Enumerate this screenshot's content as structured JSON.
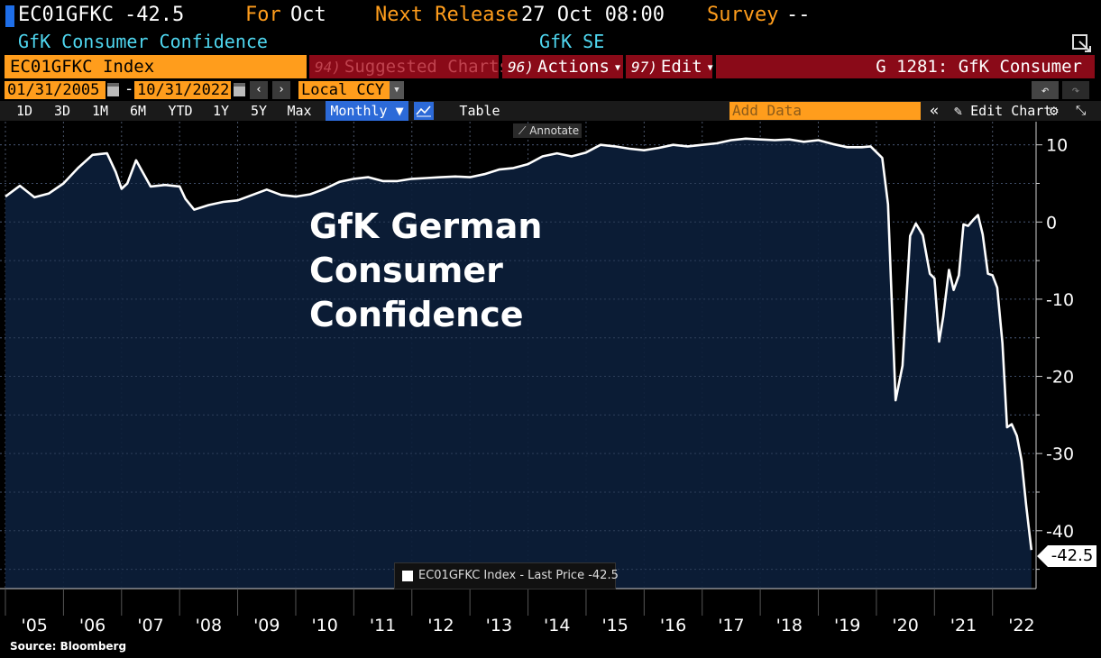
{
  "header": {
    "ticker": "EC01GFKC",
    "last_value": "-42.5",
    "for_label": "For",
    "for_value": "Oct",
    "next_release_label": "Next Release",
    "next_release_value": "27 Oct 08:00",
    "survey_label": "Survey",
    "survey_value": "--",
    "description": "GfK Consumer Confidence",
    "source_org": "GfK SE",
    "popout_icon": "expand-icon"
  },
  "toolbar": {
    "security": "EC01GFKC Index",
    "suggested_key": "94)",
    "suggested_label": "Suggested Charts",
    "actions_key": "96)",
    "actions_label": "Actions",
    "edit_key": "97)",
    "edit_label": "Edit",
    "chart_name": "G 1281: GfK Consumer"
  },
  "dates": {
    "start": "01/31/2005",
    "separator": "-",
    "end": "10/31/2022",
    "prev": "‹",
    "next": "›",
    "currency": "Local CCY",
    "undo": "↶",
    "redo": "↷"
  },
  "timeframes": {
    "items": [
      "1D",
      "3D",
      "1M",
      "6M",
      "YTD",
      "1Y",
      "5Y",
      "Max"
    ],
    "period": "Monthly ▼",
    "table": "Table",
    "add_data_placeholder": "Add Data",
    "collapse": "«",
    "edit_chart": "Edit Chart",
    "settings_icon": "gear-icon"
  },
  "chart_overlay": {
    "annotate": "Annotate",
    "title_line1": "GfK German",
    "title_line2": "Consumer",
    "title_line3": "Confidence",
    "legend": "EC01GFKC Index - Last Price -42.5",
    "last_tag": "-42.5",
    "source": "Source: Bloomberg"
  },
  "colors": {
    "accent_orange": "#ff9d1c",
    "teal": "#4fd7f0",
    "menu_red": "#8a0a18",
    "area_fill": "#0c1e3a",
    "line": "#ffffff"
  },
  "chart_data": {
    "type": "area",
    "title": "GfK German Consumer Confidence",
    "series": [
      {
        "name": "EC01GFKC Index - Last Price",
        "points": [
          [
            2005.0,
            3.3
          ],
          [
            2005.25,
            4.7
          ],
          [
            2005.5,
            3.2
          ],
          [
            2005.75,
            3.7
          ],
          [
            2006.0,
            5.0
          ],
          [
            2006.25,
            7.0
          ],
          [
            2006.5,
            8.7
          ],
          [
            2006.75,
            8.9
          ],
          [
            2006.9,
            6.5
          ],
          [
            2007.0,
            4.3
          ],
          [
            2007.1,
            5.0
          ],
          [
            2007.25,
            8.0
          ],
          [
            2007.5,
            4.6
          ],
          [
            2007.75,
            4.8
          ],
          [
            2008.0,
            4.6
          ],
          [
            2008.1,
            3.0
          ],
          [
            2008.25,
            1.6
          ],
          [
            2008.5,
            2.2
          ],
          [
            2008.75,
            2.6
          ],
          [
            2009.0,
            2.8
          ],
          [
            2009.25,
            3.5
          ],
          [
            2009.5,
            4.2
          ],
          [
            2009.75,
            3.5
          ],
          [
            2010.0,
            3.3
          ],
          [
            2010.25,
            3.6
          ],
          [
            2010.5,
            4.3
          ],
          [
            2010.75,
            5.2
          ],
          [
            2011.0,
            5.6
          ],
          [
            2011.25,
            5.8
          ],
          [
            2011.5,
            5.3
          ],
          [
            2011.75,
            5.3
          ],
          [
            2012.0,
            5.6
          ],
          [
            2012.25,
            5.7
          ],
          [
            2012.5,
            5.8
          ],
          [
            2012.75,
            5.9
          ],
          [
            2013.0,
            5.8
          ],
          [
            2013.25,
            6.2
          ],
          [
            2013.5,
            6.8
          ],
          [
            2013.75,
            7.0
          ],
          [
            2014.0,
            7.5
          ],
          [
            2014.25,
            8.5
          ],
          [
            2014.5,
            8.9
          ],
          [
            2014.75,
            8.5
          ],
          [
            2015.0,
            9.0
          ],
          [
            2015.25,
            10.0
          ],
          [
            2015.5,
            9.8
          ],
          [
            2015.75,
            9.5
          ],
          [
            2016.0,
            9.3
          ],
          [
            2016.25,
            9.6
          ],
          [
            2016.5,
            10.0
          ],
          [
            2016.75,
            9.8
          ],
          [
            2017.0,
            10.0
          ],
          [
            2017.25,
            10.2
          ],
          [
            2017.5,
            10.6
          ],
          [
            2017.75,
            10.8
          ],
          [
            2018.0,
            10.7
          ],
          [
            2018.25,
            10.6
          ],
          [
            2018.5,
            10.7
          ],
          [
            2018.75,
            10.4
          ],
          [
            2019.0,
            10.6
          ],
          [
            2019.25,
            10.1
          ],
          [
            2019.5,
            9.7
          ],
          [
            2019.75,
            9.7
          ],
          [
            2019.9,
            9.8
          ],
          [
            2020.1,
            8.3
          ],
          [
            2020.2,
            2.3
          ],
          [
            2020.33,
            -23.1
          ],
          [
            2020.45,
            -18.6
          ],
          [
            2020.58,
            -1.8
          ],
          [
            2020.68,
            -0.2
          ],
          [
            2020.8,
            -1.7
          ],
          [
            2020.92,
            -6.7
          ],
          [
            2021.0,
            -7.3
          ],
          [
            2021.08,
            -15.5
          ],
          [
            2021.15,
            -12.3
          ],
          [
            2021.25,
            -6.2
          ],
          [
            2021.33,
            -8.8
          ],
          [
            2021.42,
            -6.9
          ],
          [
            2021.5,
            -0.3
          ],
          [
            2021.58,
            -0.5
          ],
          [
            2021.67,
            0.3
          ],
          [
            2021.75,
            0.9
          ],
          [
            2021.83,
            -1.6
          ],
          [
            2021.92,
            -6.7
          ],
          [
            2022.0,
            -6.9
          ],
          [
            2022.08,
            -8.5
          ],
          [
            2022.17,
            -15.7
          ],
          [
            2022.25,
            -26.6
          ],
          [
            2022.33,
            -26.2
          ],
          [
            2022.42,
            -27.7
          ],
          [
            2022.5,
            -30.9
          ],
          [
            2022.58,
            -36.8
          ],
          [
            2022.67,
            -42.5
          ]
        ]
      }
    ],
    "x_ticks": [
      [
        2005,
        "'05"
      ],
      [
        2006,
        "'06"
      ],
      [
        2007,
        "'07"
      ],
      [
        2008,
        "'08"
      ],
      [
        2009,
        "'09"
      ],
      [
        2010,
        "'10"
      ],
      [
        2011,
        "'11"
      ],
      [
        2012,
        "'12"
      ],
      [
        2013,
        "'13"
      ],
      [
        2014,
        "'14"
      ],
      [
        2015,
        "'15"
      ],
      [
        2016,
        "'16"
      ],
      [
        2017,
        "'17"
      ],
      [
        2018,
        "'18"
      ],
      [
        2019,
        "'19"
      ],
      [
        2020,
        "'20"
      ],
      [
        2021,
        "'21"
      ],
      [
        2022,
        "'22"
      ]
    ],
    "y_ticks": [
      10,
      0,
      -10,
      -20,
      -30,
      -40
    ],
    "xlim": [
      2005.0,
      2022.75
    ],
    "ylim": [
      -47.5,
      13
    ],
    "grid": true,
    "last_value": -42.5
  }
}
